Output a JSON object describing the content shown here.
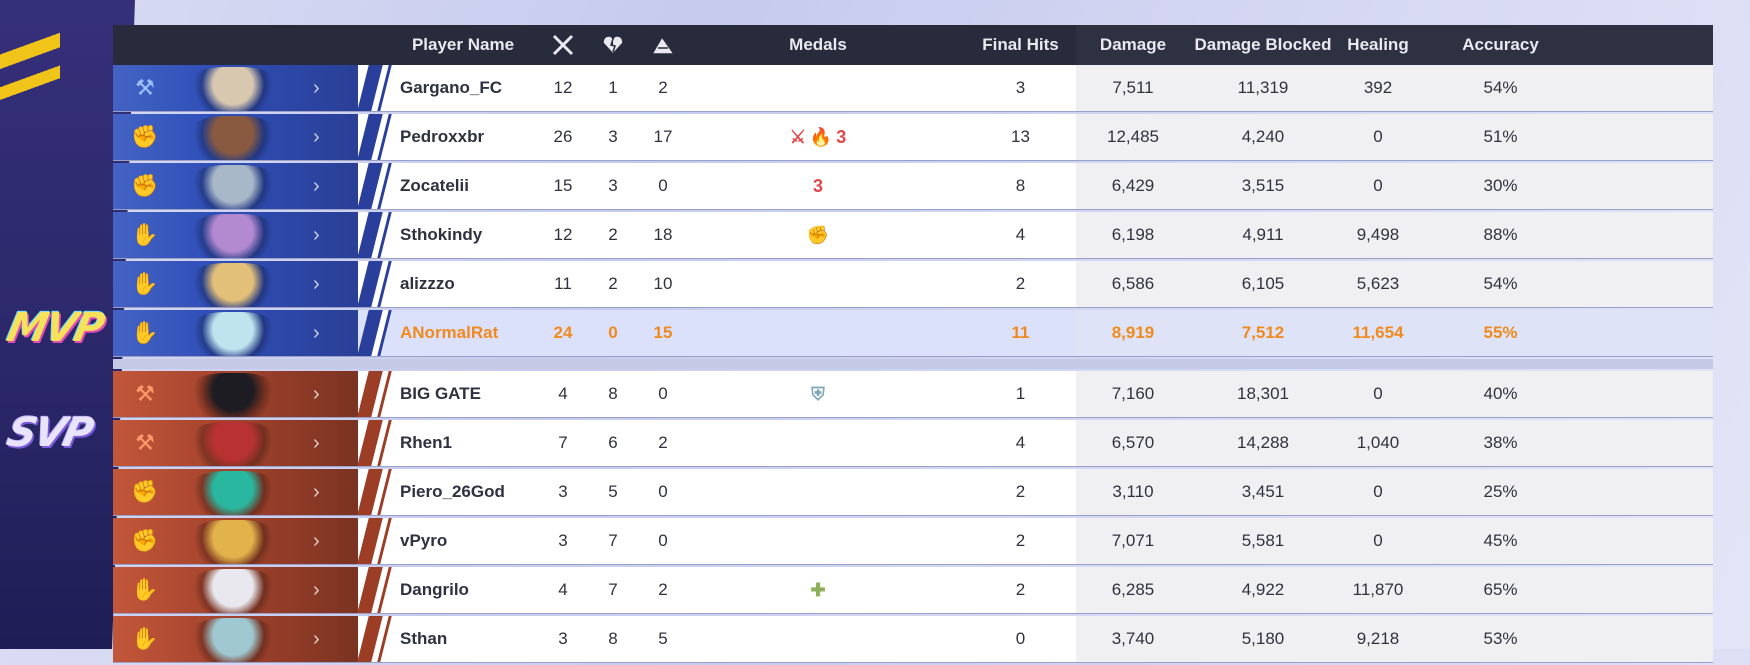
{
  "badges": {
    "mvp": "MVP",
    "svp": "SVP"
  },
  "colors": {
    "header_bg": "#272b3b",
    "team1_portrait": "#2f4fb8",
    "team2_portrait": "#a7452e",
    "mvp_highlight_text": "#f08a1c",
    "mvp_row_bg": "#dbe0fb"
  },
  "header": {
    "player_name": "Player Name",
    "kills_icon": "crossed-swords-icon",
    "deaths_icon": "broken-heart-icon",
    "assists_icon": "assist-hands-icon",
    "medals": "Medals",
    "final_hits": "Final Hits",
    "damage": "Damage",
    "damage_blocked": "Damage Blocked",
    "healing": "Healing",
    "accuracy": "Accuracy"
  },
  "team1": [
    {
      "name": "Gargano_FC",
      "role": "vanguard-icon",
      "k": "12",
      "d": "1",
      "a": "2",
      "medals": [],
      "final_hits": "3",
      "damage": "7,511",
      "blocked": "11,319",
      "healing": "392",
      "accuracy": "54%"
    },
    {
      "name": "Pedroxxbr",
      "role": "duelist-icon",
      "k": "26",
      "d": "3",
      "a": "17",
      "medals": [
        {
          "icon": "crossed-swords-medal-icon",
          "glyph": "⚔",
          "color": "#e2474b"
        },
        {
          "icon": "flame-medal-icon",
          "glyph": "🔥",
          "color": "#f06b1f"
        },
        {
          "icon": "triple-kill-medal-icon",
          "glyph": "3",
          "color": "#e2474b"
        }
      ],
      "final_hits": "13",
      "damage": "12,485",
      "blocked": "4,240",
      "healing": "0",
      "accuracy": "51%"
    },
    {
      "name": "Zocatelii",
      "role": "duelist-icon",
      "k": "15",
      "d": "3",
      "a": "0",
      "medals": [
        {
          "icon": "triple-kill-medal-icon",
          "glyph": "3",
          "color": "#e2474b"
        }
      ],
      "final_hits": "8",
      "damage": "6,429",
      "blocked": "3,515",
      "healing": "0",
      "accuracy": "30%"
    },
    {
      "name": "Sthokindy",
      "role": "strategist-icon",
      "k": "12",
      "d": "2",
      "a": "18",
      "medals": [
        {
          "icon": "fist-medal-icon",
          "glyph": "✊",
          "color": "#c9a83e"
        }
      ],
      "final_hits": "4",
      "damage": "6,198",
      "blocked": "4,911",
      "healing": "9,498",
      "accuracy": "88%"
    },
    {
      "name": "alizzzo",
      "role": "strategist-icon",
      "k": "11",
      "d": "2",
      "a": "10",
      "medals": [],
      "final_hits": "2",
      "damage": "6,586",
      "blocked": "6,105",
      "healing": "5,623",
      "accuracy": "54%"
    },
    {
      "name": "ANormalRat",
      "role": "strategist-icon",
      "k": "24",
      "d": "0",
      "a": "15",
      "medals": [],
      "final_hits": "11",
      "damage": "8,919",
      "blocked": "7,512",
      "healing": "11,654",
      "accuracy": "55%",
      "mvp": true
    }
  ],
  "team2": [
    {
      "name": "BIG GATE",
      "role": "vanguard-icon",
      "k": "4",
      "d": "8",
      "a": "0",
      "medals": [
        {
          "icon": "shield-medal-icon",
          "glyph": "⛨",
          "color": "#7fa6b8"
        }
      ],
      "final_hits": "1",
      "damage": "7,160",
      "blocked": "18,301",
      "healing": "0",
      "accuracy": "40%"
    },
    {
      "name": "Rhen1",
      "role": "vanguard-icon",
      "k": "7",
      "d": "6",
      "a": "2",
      "medals": [],
      "final_hits": "4",
      "damage": "6,570",
      "blocked": "14,288",
      "healing": "1,040",
      "accuracy": "38%"
    },
    {
      "name": "Piero_26God",
      "role": "duelist-icon",
      "k": "3",
      "d": "5",
      "a": "0",
      "medals": [],
      "final_hits": "2",
      "damage": "3,110",
      "blocked": "3,451",
      "healing": "0",
      "accuracy": "25%"
    },
    {
      "name": "vPyro",
      "role": "duelist-icon",
      "k": "3",
      "d": "7",
      "a": "0",
      "medals": [],
      "final_hits": "2",
      "damage": "7,071",
      "blocked": "5,581",
      "healing": "0",
      "accuracy": "45%"
    },
    {
      "name": "Dangrilo",
      "role": "strategist-icon",
      "k": "4",
      "d": "7",
      "a": "2",
      "medals": [
        {
          "icon": "heal-cross-medal-icon",
          "glyph": "✚",
          "color": "#8fb05a"
        }
      ],
      "final_hits": "2",
      "damage": "6,285",
      "blocked": "4,922",
      "healing": "11,870",
      "accuracy": "65%"
    },
    {
      "name": "Sthan",
      "role": "strategist-icon",
      "k": "3",
      "d": "8",
      "a": "5",
      "medals": [],
      "final_hits": "0",
      "damage": "3,740",
      "blocked": "5,180",
      "healing": "9,218",
      "accuracy": "53%"
    }
  ]
}
